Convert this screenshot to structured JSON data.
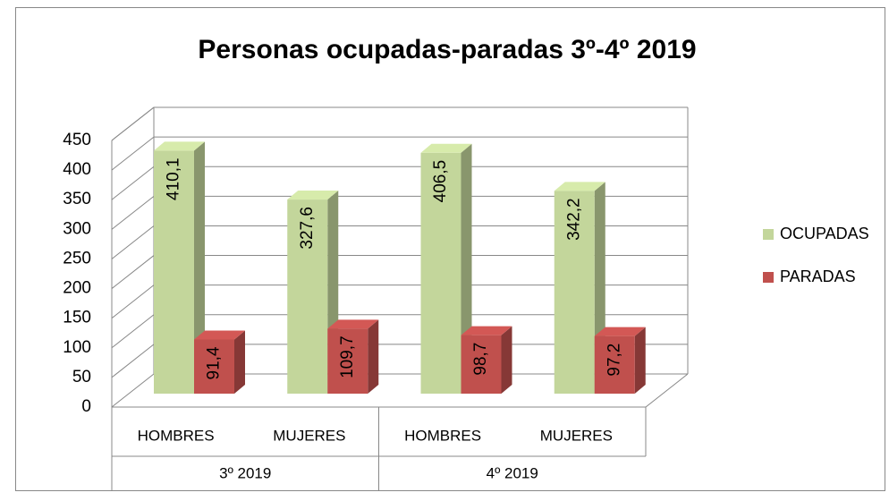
{
  "chart_data": {
    "type": "bar3d",
    "title": "Personas ocupadas-paradas 3º-4º 2019",
    "categories": [
      "HOMBRES",
      "MUJERES",
      "HOMBRES",
      "MUJERES"
    ],
    "groups": [
      "3º 2019",
      "4º 2019"
    ],
    "series": [
      {
        "name": "OCUPADAS",
        "color": "#c3d69b",
        "values": [
          410.1,
          327.6,
          406.5,
          342.2
        ],
        "value_labels": [
          "410,1",
          "327,6",
          "406,5",
          "342,2"
        ]
      },
      {
        "name": "PARADAS",
        "color": "#c0504d",
        "values": [
          91.4,
          109.7,
          98.7,
          97.2
        ],
        "value_labels": [
          "91,4",
          "109,7",
          "98,7",
          "97,2"
        ]
      }
    ],
    "ylim": [
      0,
      450
    ],
    "yticks": [
      0,
      50,
      100,
      150,
      200,
      250,
      300,
      350,
      400,
      450
    ],
    "grid": true,
    "legend": "right"
  }
}
